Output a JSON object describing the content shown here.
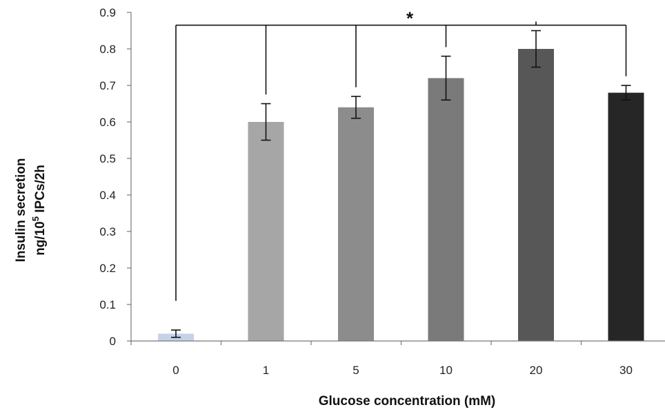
{
  "chart_data": {
    "type": "bar",
    "categories": [
      "0",
      "1",
      "5",
      "10",
      "20",
      "30"
    ],
    "values": [
      0.02,
      0.6,
      0.64,
      0.72,
      0.8,
      0.68
    ],
    "errors": [
      0.01,
      0.05,
      0.03,
      0.06,
      0.05,
      0.02
    ],
    "colors": [
      "#c5d3e8",
      "#a6a6a6",
      "#8c8c8c",
      "#7a7a7a",
      "#575757",
      "#262626"
    ],
    "xlabel": "Glucose concentration (mM)",
    "ylabel_line1": "Insulin secretion",
    "ylabel_line2_prefix": "ng/10",
    "ylabel_line2_sup": "5",
    "ylabel_line2_suffix": " IPCs/2h",
    "ylim": [
      0,
      0.9
    ],
    "yticks": [
      "0",
      "0.1",
      "0.2",
      "0.3",
      "0.4",
      "0.5",
      "0.6",
      "0.7",
      "0.8",
      "0.9"
    ],
    "significance": {
      "label": "*",
      "reference_category": "0",
      "compared_categories": [
        "1",
        "5",
        "10",
        "20",
        "30"
      ]
    },
    "grid": false,
    "legend": "none"
  }
}
